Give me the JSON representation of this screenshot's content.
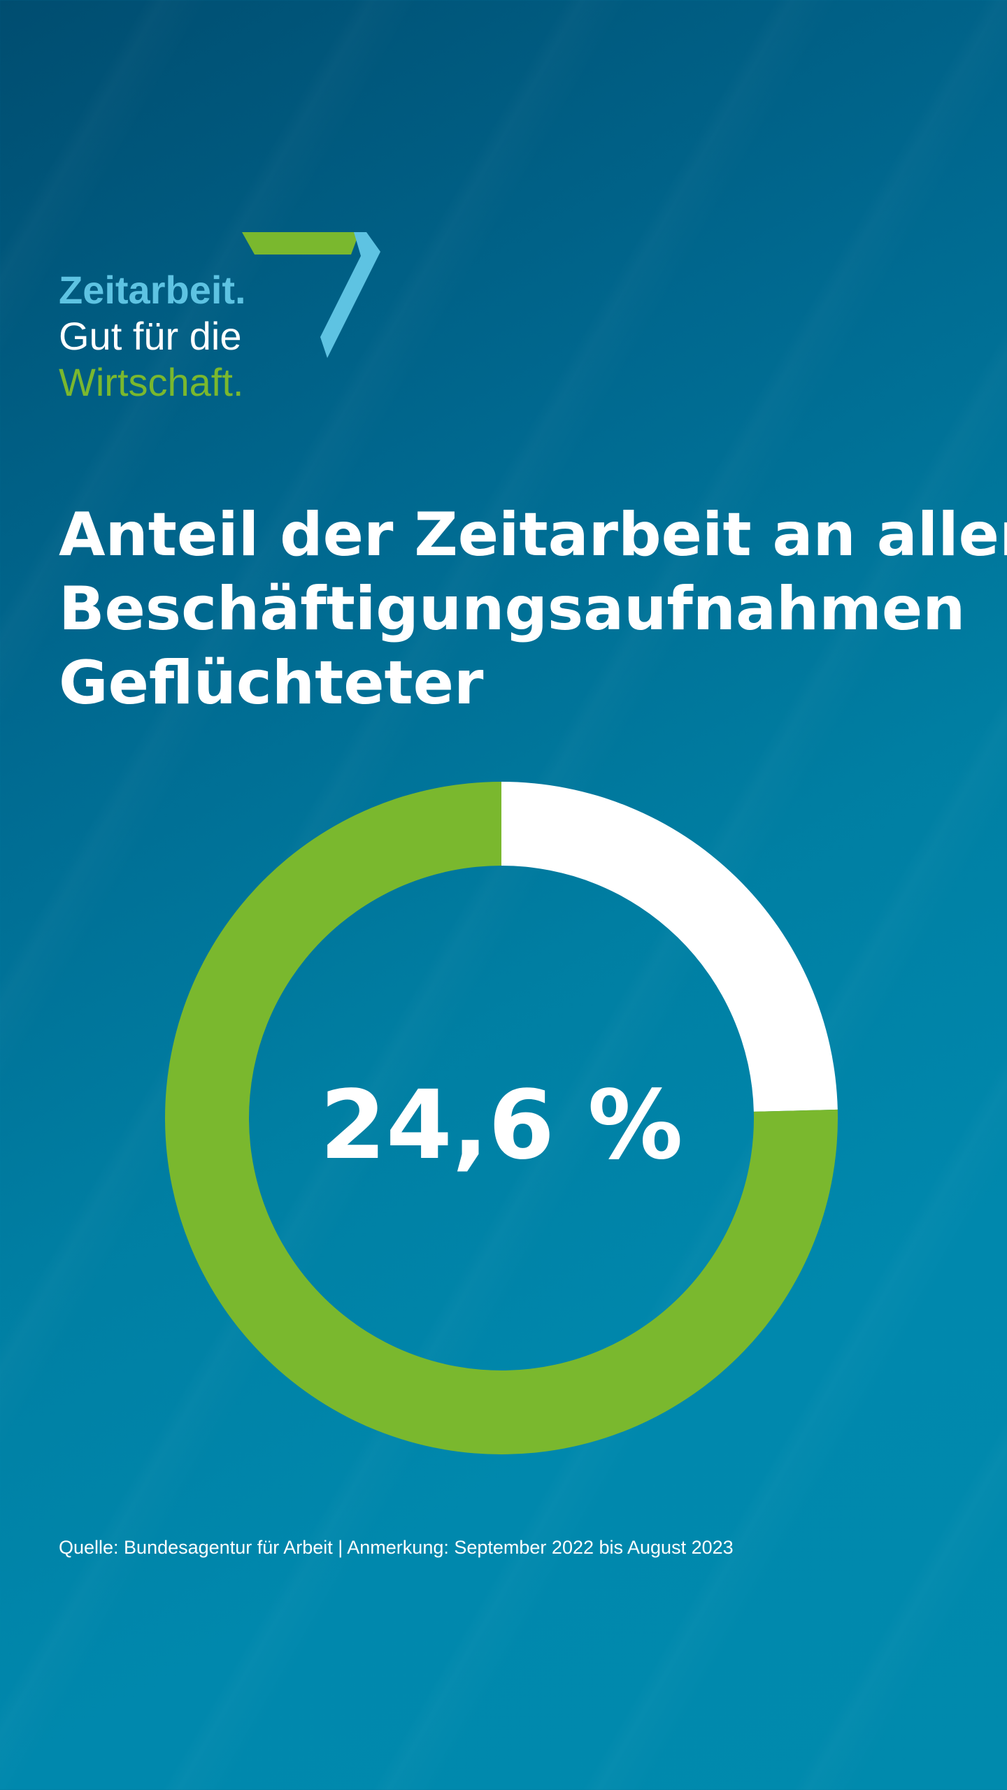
{
  "logo": {
    "line1": "Zeitarbeit.",
    "line2": "Gut für die",
    "line3": "Wirtschaft.",
    "icon": "seven-logo-icon",
    "colors": {
      "light_blue": "#5ec3e2",
      "green": "#7ab82e"
    }
  },
  "title": {
    "line1": "Anteil der Zeitarbeit an allen",
    "line2": "Beschäftigungsaufnahmen",
    "line3": "Geflüchteter"
  },
  "chart_data": {
    "type": "pie",
    "variant": "donut",
    "title": "Anteil der Zeitarbeit an allen Beschäftigungsaufnahmen Geflüchteter",
    "center_label": "24,6 %",
    "slices": [
      {
        "value": 24.6,
        "color": "#ffffff"
      },
      {
        "value": 75.4,
        "color": "#7ab82e"
      }
    ],
    "start": "top",
    "direction": "clockwise"
  },
  "footer": {
    "source": "Quelle: Bundesagentur für Arbeit | Anmerkung: September 2022 bis August 2023"
  },
  "colors": {
    "background_dark": "#004d70",
    "background_light": "#008aad",
    "accent_green": "#7ab82e",
    "text": "#ffffff"
  }
}
